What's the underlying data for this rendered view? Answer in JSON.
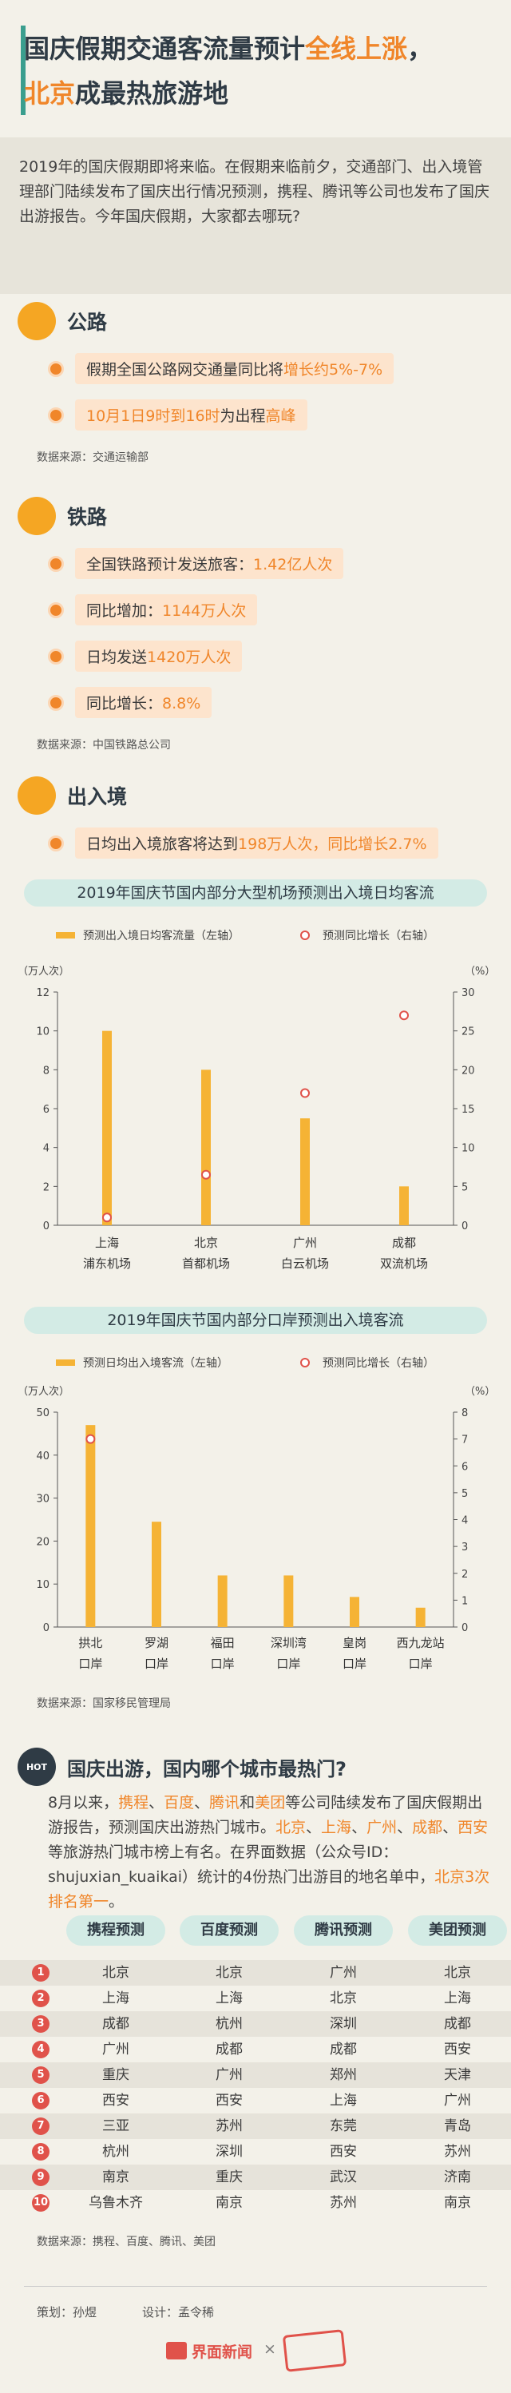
{
  "header": {
    "title_lines": [
      [
        {
          "t": "国庆假期交通客流量预计"
        },
        {
          "t": "全线上涨",
          "em": true
        },
        {
          "t": "，"
        }
      ],
      [
        {
          "t": "北京",
          "em": true
        },
        {
          "t": "成最热旅游地"
        }
      ]
    ]
  },
  "intro": [
    {
      "t": "2019年的国庆假期即将来临。在假期来临前夕，交通部门、出入境管理部门陆续发布了国庆出行情况预测，携程、腾讯等公司也发布了国庆出游报告。今年国庆假期，大家都去哪玩?"
    }
  ],
  "sections": [
    {
      "heading": "公路",
      "bullets": [
        [
          {
            "t": "假期全国公路网交通量同比将"
          },
          {
            "t": "增长约5%-7%",
            "em": true
          }
        ],
        [
          {
            "t": "10月1日9时到16时",
            "em": true
          },
          {
            "t": "为出程"
          },
          {
            "t": "高峰",
            "em": true
          }
        ]
      ],
      "source": "数据来源：交通运输部"
    },
    {
      "heading": "铁路",
      "bullets": [
        [
          {
            "t": "全国铁路预计发送旅客："
          },
          {
            "t": "1.42亿人次",
            "em": true
          }
        ],
        [
          {
            "t": "同比增加："
          },
          {
            "t": "1144万人次",
            "em": true
          }
        ],
        [
          {
            "t": "日均发送"
          },
          {
            "t": "1420万人次",
            "em": true
          }
        ],
        [
          {
            "t": "同比增长："
          },
          {
            "t": "8.8%",
            "em": true
          }
        ]
      ],
      "source": "数据来源：中国铁路总公司"
    },
    {
      "heading": "出入境",
      "bullets": [
        [
          {
            "t": "日均出入境旅客将达到"
          },
          {
            "t": "198万人次，同比增长2.7%",
            "em": true
          }
        ]
      ]
    }
  ],
  "chart_data": [
    {
      "type": "bar",
      "title": "2019年国庆节国内部分大型机场预测出入境日均客流",
      "categories": [
        [
          "上海",
          "浦东机场"
        ],
        [
          "北京",
          "首都机场"
        ],
        [
          "广州",
          "白云机场"
        ],
        [
          "成都",
          "双流机场"
        ]
      ],
      "series": [
        {
          "name": "预测出入境日均客流量（左轴）",
          "color": "#f5b335",
          "values": [
            10,
            8,
            5.5,
            2
          ]
        },
        {
          "name": "预测同比增长（右轴）",
          "color": "#e0524a",
          "type": "scatter",
          "axis": "y2",
          "values": [
            1,
            6.5,
            17,
            27
          ]
        }
      ],
      "ylabel": "（万人次）",
      "y2label": "（%）",
      "ylim": [
        0,
        12
      ],
      "yticks": [
        0,
        2,
        4,
        6,
        8,
        10,
        12
      ],
      "y2lim": [
        0,
        30
      ],
      "y2ticks": [
        0,
        5,
        10,
        15,
        20,
        25,
        30
      ]
    },
    {
      "type": "bar",
      "title": "2019年国庆节国内部分口岸预测出入境客流",
      "categories": [
        [
          "拱北",
          "口岸"
        ],
        [
          "罗湖",
          "口岸"
        ],
        [
          "福田",
          "口岸"
        ],
        [
          "深圳湾",
          "口岸"
        ],
        [
          "皇岗",
          "口岸"
        ],
        [
          "西九龙站",
          "口岸"
        ]
      ],
      "series": [
        {
          "name": "预测日均出入境客流（左轴）",
          "color": "#f5b335",
          "values": [
            47,
            24.5,
            12,
            12,
            7,
            4.5
          ]
        },
        {
          "name": "预测同比增长（右轴）",
          "color": "#e0524a",
          "type": "scatter",
          "axis": "y2",
          "values": [
            7,
            null,
            null,
            null,
            null,
            null
          ]
        }
      ],
      "ylabel": "（万人次）",
      "y2label": "（%）",
      "ylim": [
        0,
        50
      ],
      "yticks": [
        0,
        10,
        20,
        30,
        40,
        50
      ],
      "y2lim": [
        0,
        8
      ],
      "y2ticks": [
        0,
        1,
        2,
        3,
        4,
        5,
        6,
        7,
        8
      ]
    }
  ],
  "chart_source": "数据来源：国家移民管理局",
  "hot": {
    "badge": "HOT",
    "heading": "国庆出游，国内哪个城市最热门?",
    "paragraph": [
      {
        "t": "8月以来，"
      },
      {
        "t": "携程",
        "em": true
      },
      {
        "t": "、"
      },
      {
        "t": "百度",
        "em": true
      },
      {
        "t": "、"
      },
      {
        "t": "腾讯",
        "em": true
      },
      {
        "t": "和"
      },
      {
        "t": "美团",
        "em": true
      },
      {
        "t": "等公司陆续发布了国庆假期出游报告，预测国庆出游热门城市。"
      },
      {
        "t": "北京",
        "em": true
      },
      {
        "t": "、"
      },
      {
        "t": "上海",
        "em": true
      },
      {
        "t": "、"
      },
      {
        "t": "广州",
        "em": true
      },
      {
        "t": "、"
      },
      {
        "t": "成都",
        "em": true
      },
      {
        "t": "、"
      },
      {
        "t": "西安",
        "em": true
      },
      {
        "t": "等旅游热门城市榜上有名。在界面数据（公众号ID：shujuxian_kuaikai）统计的4份热门出游目的地名单中，"
      },
      {
        "t": "北京3次排名第一",
        "em": true
      },
      {
        "t": "。"
      }
    ],
    "table": {
      "headers": [
        "携程预测",
        "百度预测",
        "腾讯预测",
        "美团预测"
      ],
      "rows": [
        [
          "1",
          "北京",
          "北京",
          "广州",
          "北京"
        ],
        [
          "2",
          "上海",
          "上海",
          "北京",
          "上海"
        ],
        [
          "3",
          "成都",
          "杭州",
          "深圳",
          "成都"
        ],
        [
          "4",
          "广州",
          "成都",
          "成都",
          "西安"
        ],
        [
          "5",
          "重庆",
          "广州",
          "郑州",
          "天津"
        ],
        [
          "6",
          "西安",
          "西安",
          "上海",
          "广州"
        ],
        [
          "7",
          "三亚",
          "苏州",
          "东莞",
          "青岛"
        ],
        [
          "8",
          "杭州",
          "深圳",
          "西安",
          "苏州"
        ],
        [
          "9",
          "南京",
          "重庆",
          "武汉",
          "济南"
        ],
        [
          "10",
          "乌鲁木齐",
          "南京",
          "苏州",
          "南京"
        ]
      ]
    },
    "source": "数据来源：携程、百度、腾讯、美团"
  },
  "footer": {
    "planner": "策划：孙煜",
    "designer": "设计：孟令稀",
    "brand": "界面新闻",
    "times": "×"
  }
}
